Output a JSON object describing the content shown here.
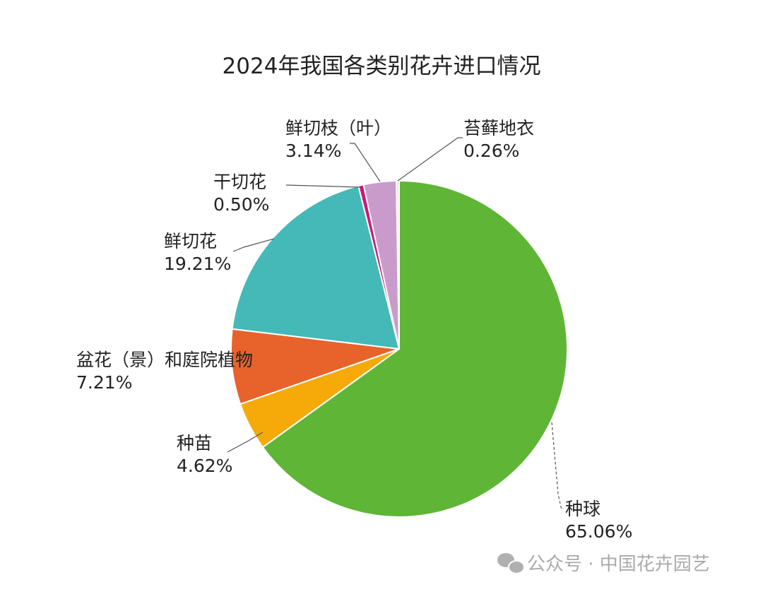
{
  "chart_data": {
    "type": "pie",
    "title": "2024年我国各类别花卉进口情况",
    "start": "12 o'clock, clockwise",
    "slices": [
      {
        "label": "种球",
        "value": 65.06,
        "value_label": "65.06%",
        "color": "#5fb535"
      },
      {
        "label": "种苗",
        "value": 4.62,
        "value_label": "4.62%",
        "color": "#f5aa0a"
      },
      {
        "label": "盆花（景）和庭院植物",
        "value": 7.21,
        "value_label": "7.21%",
        "color": "#e8632b"
      },
      {
        "label": "鲜切花",
        "value": 19.21,
        "value_label": "19.21%",
        "color": "#45b9b7"
      },
      {
        "label": "干切花",
        "value": 0.5,
        "value_label": "0.50%",
        "color": "#c8197d"
      },
      {
        "label": "鲜切枝（叶）",
        "value": 3.14,
        "value_label": "3.14%",
        "color": "#c99bcb"
      },
      {
        "label": "苔藓地衣",
        "value": 0.26,
        "value_label": "0.26%",
        "color": "#ece4cc"
      }
    ]
  },
  "watermark": {
    "text": "公众号 · 中国花卉园艺",
    "icon": "wechat-icon"
  }
}
